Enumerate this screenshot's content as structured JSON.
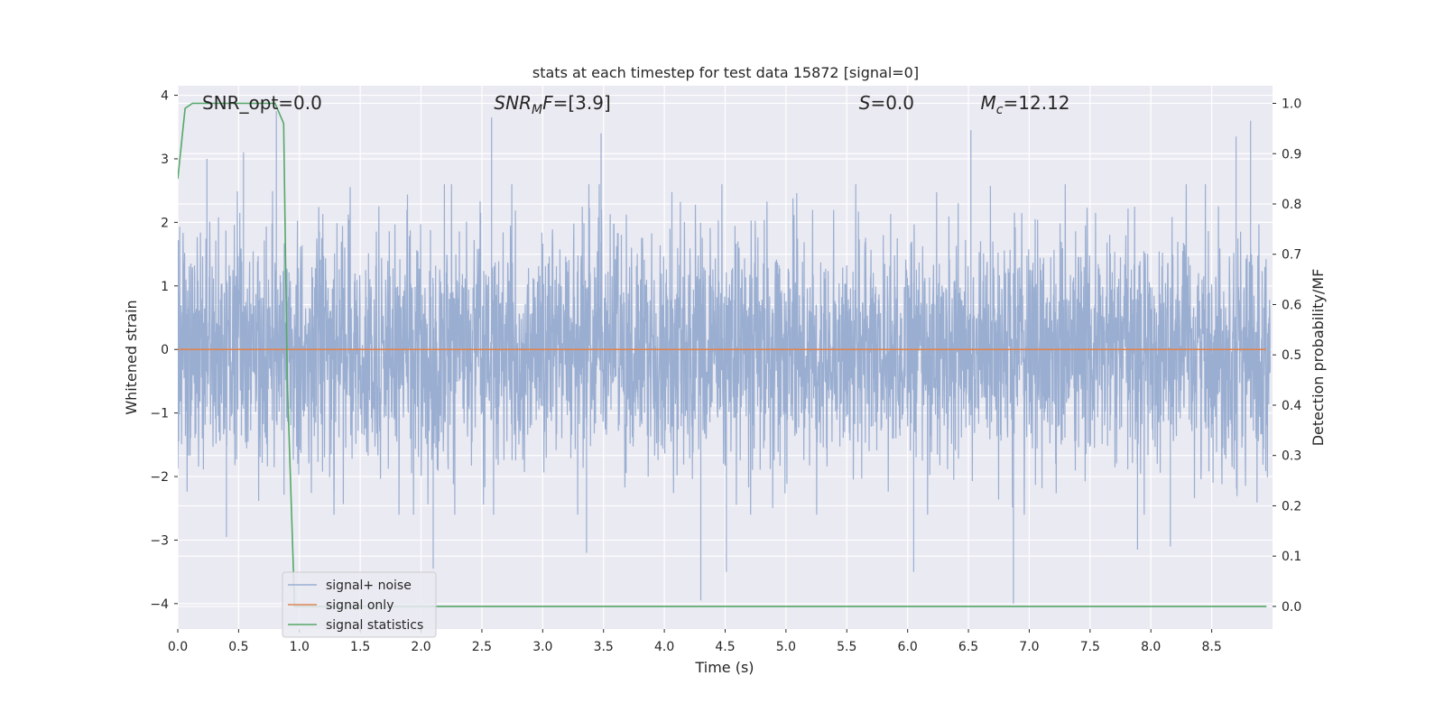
{
  "chart_data": {
    "type": "line",
    "title": "stats at each timestep for test data 15872 [signal=0]",
    "xlabel": "Time (s)",
    "ylabel": "Whitened strain",
    "y2label": "Detection probability/MF",
    "xlim": [
      0.0,
      9.0
    ],
    "ylim": [
      -4.4,
      4.15
    ],
    "y2lim": [
      -0.045,
      1.035
    ],
    "xticks": [
      0.0,
      0.5,
      1.0,
      1.5,
      2.0,
      2.5,
      3.0,
      3.5,
      4.0,
      4.5,
      5.0,
      5.5,
      6.0,
      6.5,
      7.0,
      7.5,
      8.0,
      8.5
    ],
    "xtick_labels": [
      "0.0",
      "0.5",
      "1.0",
      "1.5",
      "2.0",
      "2.5",
      "3.0",
      "3.5",
      "4.0",
      "4.5",
      "5.0",
      "5.5",
      "6.0",
      "6.5",
      "7.0",
      "7.5",
      "8.0",
      "8.5"
    ],
    "yticks": [
      4,
      3,
      2,
      1,
      0,
      -1,
      -2,
      -3,
      -4
    ],
    "ytick_labels": [
      "4",
      "3",
      "2",
      "1",
      "0",
      "−1",
      "−2",
      "−3",
      "−4"
    ],
    "y2ticks": [
      1.0,
      0.9,
      0.8,
      0.7,
      0.6,
      0.5,
      0.4,
      0.3,
      0.2,
      0.1,
      0.0
    ],
    "y2tick_labels": [
      "1.0",
      "0.9",
      "0.8",
      "0.7",
      "0.6",
      "0.5",
      "0.4",
      "0.3",
      "0.2",
      "0.1",
      "0.0"
    ],
    "annotations": [
      {
        "name": "snr-opt",
        "base": "SNR_opt=0.0",
        "sub": "",
        "rest": "",
        "italic": false,
        "x": 0.2
      },
      {
        "name": "snr-mf",
        "base": "SNR",
        "sub": "M",
        "rest": "F=[3.9]",
        "italic": true,
        "x": 2.6
      },
      {
        "name": "s-stat",
        "base": "S",
        "sub": "",
        "rest": "=0.0",
        "italic": true,
        "x": 5.6
      },
      {
        "name": "chirp-mass",
        "base": "M",
        "sub": "c",
        "rest": "=12.12",
        "italic": true,
        "x": 6.6
      }
    ],
    "series": [
      {
        "name": "signal+ noise",
        "color": "#9aaed1",
        "axis": "left",
        "note": "whitened strain noise trace, approx. 2048 samples/s, amplitude envelope about ±1.7 with spikes to +3.8 and −4.0",
        "spikes": [
          [
            0.81,
            3.75
          ],
          [
            2.58,
            3.65
          ],
          [
            6.52,
            3.45
          ],
          [
            8.82,
            3.6
          ],
          [
            8.7,
            3.35
          ],
          [
            0.24,
            3.0
          ],
          [
            0.54,
            3.1
          ],
          [
            3.48,
            3.4
          ],
          [
            4.3,
            -3.95
          ],
          [
            4.51,
            -3.5
          ],
          [
            6.05,
            -3.5
          ],
          [
            6.87,
            -4.0
          ],
          [
            2.1,
            -3.45
          ],
          [
            0.4,
            -2.95
          ],
          [
            7.89,
            -3.15
          ],
          [
            8.16,
            -3.1
          ],
          [
            3.36,
            -3.2
          ]
        ]
      },
      {
        "name": "signal only",
        "color": "#dd8452",
        "axis": "left",
        "x": [
          0.0,
          8.95
        ],
        "y": [
          0.0,
          0.0
        ]
      },
      {
        "name": "signal statistics",
        "color": "#55a868",
        "axis": "right",
        "x": [
          0.0,
          0.06,
          0.12,
          0.2,
          0.4,
          0.6,
          0.8,
          0.87,
          0.9,
          0.96,
          1.0,
          2.0,
          4.0,
          6.0,
          8.0,
          8.95
        ],
        "y": [
          0.85,
          0.99,
          1.0,
          1.0,
          1.0,
          1.0,
          1.0,
          0.96,
          0.45,
          0.0,
          0.0,
          0.0,
          0.0,
          0.0,
          0.0,
          0.0
        ]
      }
    ],
    "legend": {
      "placement": "lower-left"
    },
    "grid": true
  }
}
